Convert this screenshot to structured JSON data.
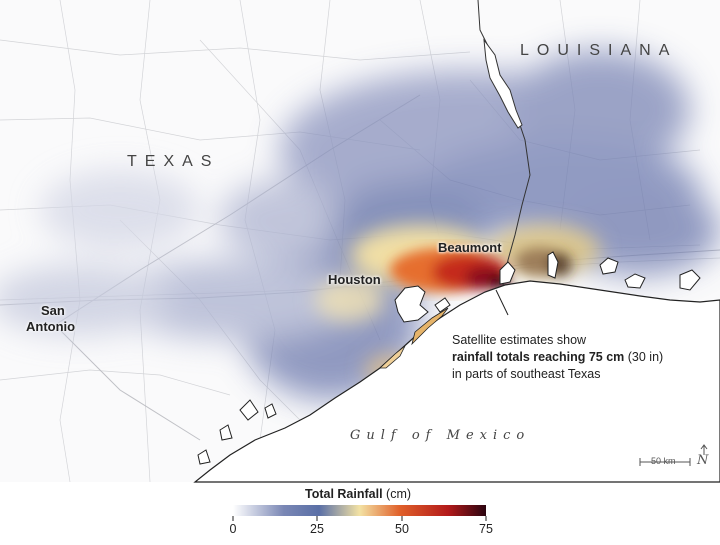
{
  "labels": {
    "texas": "TEXAS",
    "louisiana": "LOUISIANA",
    "gulf": "Gulf of Mexico",
    "cities": {
      "beaumont": "Beaumont",
      "houston": "Houston",
      "san_antonio_line1": "San",
      "san_antonio_line2": "Antonio"
    }
  },
  "annotation": {
    "line1": "Satellite estimates show",
    "line2_bold": "rainfall totals reaching 75 cm",
    "line2_rest": " (30 in)",
    "line3": "in parts of southeast Texas"
  },
  "scale_bar": {
    "label": "50 km",
    "north_symbol": "N"
  },
  "legend": {
    "title_bold": "Total Rainfall",
    "title_unit": " (cm)",
    "ticks": [
      "0",
      "25",
      "50",
      "75"
    ],
    "min": 0,
    "max": 75,
    "colors": [
      "#ffffff",
      "#5a6fa6",
      "#f3e2a4",
      "#e0602a",
      "#b31a1a",
      "#2a0410"
    ]
  }
}
